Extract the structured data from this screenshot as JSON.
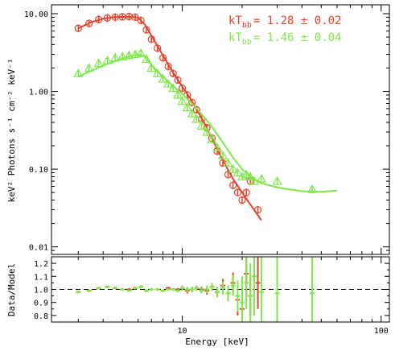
{
  "chart_data": [
    {
      "panel": "spectrum",
      "type": "scatter",
      "xlabel": "Energy [keV]",
      "ylabel": "keV² Photons s⁻¹ cm⁻² keV⁻¹",
      "xscale": "log",
      "yscale": "log",
      "xlim": [
        2.2,
        110
      ],
      "ylim": [
        0.008,
        13
      ],
      "x_ticks": [
        "10",
        "100"
      ],
      "y_ticks": [
        "0.01",
        "0.10",
        "1.00",
        "10.00"
      ],
      "legend_placement": "top-right",
      "legend": [
        {
          "text": "kTₕₕ = 1.28 ± 0.02",
          "prefix": "kT",
          "sub": "bb",
          "value": "= 1.28 ± 0.02",
          "color": "#e8412b"
        },
        {
          "text": "kTₕₕ = 1.46 ± 0.04",
          "prefix": "kT",
          "sub": "bb",
          "value": "= 1.46 ± 0.04",
          "color": "#7ee84a"
        }
      ],
      "series": [
        {
          "color": "#e8412b",
          "marker": "circle",
          "x": [
            3.0,
            3.4,
            3.8,
            4.2,
            4.6,
            5.0,
            5.4,
            5.8,
            6.2,
            6.6,
            7.0,
            7.5,
            8.0,
            8.5,
            9.0,
            9.5,
            10.0,
            10.6,
            11.2,
            11.8,
            12.5,
            13.3,
            14.1,
            15.0,
            16.0,
            17.0,
            18.0,
            19.0,
            20.0,
            21.0,
            22.0,
            24.0
          ],
          "y": [
            6.5,
            7.5,
            8.4,
            8.8,
            9.0,
            9.1,
            9.2,
            9.0,
            8.2,
            6.2,
            4.7,
            3.6,
            2.7,
            2.1,
            1.7,
            1.4,
            1.1,
            0.9,
            0.72,
            0.58,
            0.44,
            0.34,
            0.25,
            0.17,
            0.12,
            0.085,
            0.062,
            0.05,
            0.04,
            0.05,
            0.07,
            0.03
          ],
          "model_x": [
            3.0,
            3.5,
            4.0,
            4.5,
            5.0,
            5.5,
            6.0,
            6.5,
            7.0,
            8.0,
            9.0,
            10.0,
            11.0,
            12.0,
            13.0,
            14.0,
            15.0,
            16.0,
            18.0,
            20.0,
            22.0,
            25.0
          ],
          "model_y": [
            6.5,
            7.8,
            8.6,
            9.0,
            9.1,
            9.15,
            8.9,
            7.2,
            5.2,
            2.9,
            1.75,
            1.15,
            0.8,
            0.55,
            0.38,
            0.26,
            0.18,
            0.13,
            0.075,
            0.05,
            0.035,
            0.022
          ]
        },
        {
          "color": "#7ee84a",
          "marker": "triangle",
          "x": [
            3.0,
            3.4,
            3.8,
            4.2,
            4.6,
            5.0,
            5.4,
            5.8,
            6.2,
            6.6,
            7.0,
            7.5,
            8.0,
            8.5,
            9.0,
            9.5,
            10.0,
            10.6,
            11.2,
            11.8,
            12.5,
            13.3,
            14.1,
            15.0,
            16.0,
            17.0,
            18.0,
            19.0,
            20.0,
            21.0,
            22.0,
            23.0,
            25.0,
            30.0,
            45.0
          ],
          "y": [
            1.7,
            2.0,
            2.3,
            2.5,
            2.7,
            2.8,
            2.9,
            3.0,
            3.1,
            2.6,
            2.0,
            1.7,
            1.45,
            1.25,
            1.1,
            0.9,
            0.75,
            0.62,
            0.52,
            0.44,
            0.36,
            0.3,
            0.24,
            0.19,
            0.15,
            0.12,
            0.1,
            0.09,
            0.08,
            0.085,
            0.08,
            0.07,
            0.075,
            0.07,
            0.055
          ],
          "model_x": [
            3.0,
            3.5,
            4.0,
            4.5,
            5.0,
            5.5,
            6.0,
            6.5,
            7.0,
            8.0,
            9.0,
            10.0,
            12.0,
            14.0,
            16.0,
            18.0,
            20.0,
            22.0,
            25.0,
            30.0,
            40.0,
            50.0,
            60.0
          ],
          "model_y": [
            1.55,
            1.85,
            2.15,
            2.4,
            2.65,
            2.85,
            3.0,
            2.8,
            2.2,
            1.55,
            1.18,
            0.93,
            0.58,
            0.36,
            0.22,
            0.14,
            0.1,
            0.08,
            0.066,
            0.058,
            0.052,
            0.051,
            0.053
          ]
        }
      ]
    },
    {
      "panel": "residuals",
      "type": "scatter",
      "xlabel": "Energy [keV]",
      "ylabel": "Data/Model",
      "xscale": "log",
      "xlim": [
        2.2,
        110
      ],
      "ylim": [
        0.75,
        1.25
      ],
      "y_ticks": [
        "0.8",
        "0.9",
        "1.0",
        "1.1",
        "1.2"
      ],
      "reference_line": 1.0,
      "series": [
        {
          "color": "#e8412b",
          "x": [
            3.0,
            3.4,
            3.8,
            4.2,
            4.6,
            5.0,
            5.4,
            5.8,
            6.2,
            6.6,
            7.0,
            7.5,
            8.0,
            8.5,
            9.0,
            9.5,
            10.0,
            10.6,
            11.2,
            11.8,
            12.5,
            13.3,
            14.1,
            15.0,
            16.0,
            17.0,
            18.0,
            19.0,
            20.0,
            21.0,
            22.0,
            24.0
          ],
          "y": [
            0.98,
            0.99,
            1.01,
            1.02,
            1.01,
            1.0,
            1.0,
            1.01,
            1.02,
            0.99,
            1.0,
            1.0,
            0.99,
            1.01,
            1.0,
            1.0,
            1.01,
            0.99,
            1.0,
            1.01,
            1.0,
            0.99,
            1.02,
            0.98,
            1.03,
            0.97,
            1.05,
            0.92,
            0.85,
            1.12,
            0.95,
            1.05
          ],
          "err": [
            0.01,
            0.01,
            0.01,
            0.01,
            0.01,
            0.01,
            0.01,
            0.01,
            0.01,
            0.01,
            0.01,
            0.01,
            0.01,
            0.01,
            0.01,
            0.01,
            0.02,
            0.02,
            0.02,
            0.02,
            0.02,
            0.03,
            0.03,
            0.04,
            0.05,
            0.06,
            0.08,
            0.12,
            0.2,
            0.18,
            0.15,
            0.2
          ]
        },
        {
          "color": "#7ee84a",
          "x": [
            3.0,
            3.4,
            3.8,
            4.2,
            4.6,
            5.0,
            5.4,
            5.8,
            6.2,
            6.6,
            7.0,
            7.5,
            8.0,
            8.5,
            9.0,
            9.5,
            10.0,
            10.6,
            11.2,
            11.8,
            12.5,
            13.3,
            14.1,
            15.0,
            16.0,
            17.0,
            18.0,
            19.0,
            20.0,
            21.0,
            22.0,
            23.0,
            25.0,
            30.0,
            45.0
          ],
          "y": [
            0.98,
            0.99,
            1.01,
            1.02,
            1.01,
            1.0,
            0.99,
            1.01,
            1.02,
            0.99,
            1.0,
            1.0,
            0.99,
            1.0,
            1.0,
            0.99,
            1.01,
            1.0,
            1.0,
            1.01,
            0.99,
            1.0,
            1.02,
            0.98,
            1.01,
            0.97,
            1.03,
            0.95,
            0.9,
            1.05,
            0.95,
            1.1,
            0.98,
            0.97,
            0.97
          ],
          "err": [
            0.01,
            0.01,
            0.01,
            0.01,
            0.01,
            0.01,
            0.01,
            0.01,
            0.01,
            0.01,
            0.01,
            0.01,
            0.01,
            0.01,
            0.01,
            0.01,
            0.02,
            0.02,
            0.02,
            0.02,
            0.02,
            0.03,
            0.03,
            0.04,
            0.05,
            0.06,
            0.08,
            0.12,
            0.2,
            0.2,
            0.25,
            0.3,
            0.3,
            0.3,
            0.3
          ]
        }
      ]
    }
  ]
}
